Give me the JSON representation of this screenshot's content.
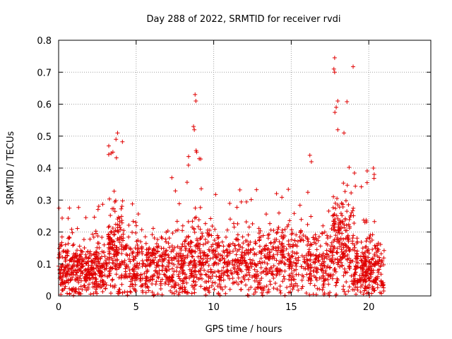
{
  "chart_data": {
    "type": "scatter",
    "title": "Day 288 of 2022, SRMTID for receiver rvdi",
    "xlabel": "GPS time / hours",
    "ylabel": "SRMTID / TECUs",
    "xlim": [
      0,
      24
    ],
    "ylim": [
      0,
      0.8
    ],
    "xticks": [
      0,
      5,
      10,
      15,
      20
    ],
    "yticks": [
      0,
      0.1,
      0.2,
      0.3,
      0.4,
      0.5,
      0.6,
      0.7,
      0.8
    ],
    "xtick_labels": [
      "0",
      "5",
      "10",
      "15",
      "20"
    ],
    "ytick_labels": [
      "0",
      "0.1",
      "0.2",
      "0.3",
      "0.4",
      "0.5",
      "0.6",
      "0.7",
      "0.8"
    ],
    "grid": true,
    "marker": "+",
    "color": "#e00000",
    "seed": 288,
    "segments": [
      {
        "t0": 0.0,
        "t1": 3.2,
        "n": 420,
        "base": 0.08,
        "spread": 0.09,
        "occasional_peak": 0.3
      },
      {
        "t0": 3.2,
        "t1": 4.2,
        "n": 160,
        "base": 0.14,
        "spread": 0.16,
        "occasional_peak": 0.5
      },
      {
        "t0": 4.2,
        "t1": 8.3,
        "n": 420,
        "base": 0.09,
        "spread": 0.1,
        "occasional_peak": 0.36
      },
      {
        "t0": 8.3,
        "t1": 9.2,
        "n": 120,
        "base": 0.11,
        "spread": 0.12,
        "occasional_peak": 0.6
      },
      {
        "t0": 9.2,
        "t1": 17.6,
        "n": 780,
        "base": 0.1,
        "spread": 0.11,
        "occasional_peak": 0.34
      },
      {
        "t0": 17.6,
        "t1": 19.0,
        "n": 200,
        "base": 0.15,
        "spread": 0.15,
        "occasional_peak": 0.74
      },
      {
        "t0": 19.0,
        "t1": 21.0,
        "n": 260,
        "base": 0.08,
        "spread": 0.09,
        "occasional_peak": 0.4
      }
    ],
    "highlights": [
      {
        "x": 3.8,
        "y": 0.51
      },
      {
        "x": 3.7,
        "y": 0.49
      },
      {
        "x": 3.5,
        "y": 0.45
      },
      {
        "x": 8.8,
        "y": 0.63
      },
      {
        "x": 8.85,
        "y": 0.61
      },
      {
        "x": 8.7,
        "y": 0.53
      },
      {
        "x": 8.75,
        "y": 0.52
      },
      {
        "x": 8.9,
        "y": 0.45
      },
      {
        "x": 17.8,
        "y": 0.745
      },
      {
        "x": 17.75,
        "y": 0.71
      },
      {
        "x": 17.8,
        "y": 0.7
      },
      {
        "x": 18.0,
        "y": 0.61
      },
      {
        "x": 17.9,
        "y": 0.59
      },
      {
        "x": 18.0,
        "y": 0.52
      },
      {
        "x": 18.4,
        "y": 0.51
      },
      {
        "x": 16.2,
        "y": 0.44
      },
      {
        "x": 16.3,
        "y": 0.42
      },
      {
        "x": 20.3,
        "y": 0.4
      },
      {
        "x": 20.35,
        "y": 0.38
      },
      {
        "x": 7.3,
        "y": 0.37
      }
    ]
  }
}
